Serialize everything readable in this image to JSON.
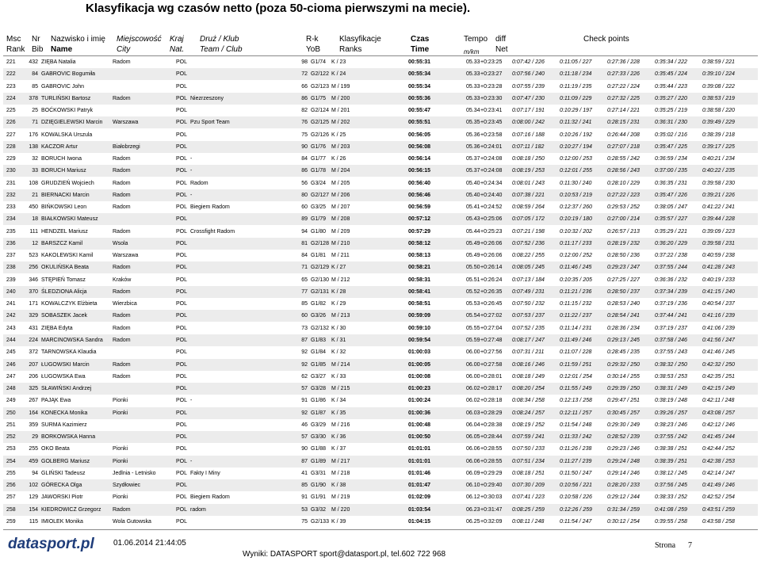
{
  "header": {
    "title": "Klasyfikacja wg czasów netto (poza 50-cioma pierwszymi na mecie)."
  },
  "columns": [
    {
      "pl": "Msc",
      "en": "Rank"
    },
    {
      "pl": "Nr",
      "en": "Bib"
    },
    {
      "pl": "Nazwisko i imię",
      "en": "Name"
    },
    {
      "pl": "Miejscowość",
      "en": "City"
    },
    {
      "pl": "Kraj",
      "en": "Nat."
    },
    {
      "pl": "Druż / Klub",
      "en": "Team / Club"
    },
    {
      "pl": "R-k",
      "en": "YoB"
    },
    {
      "pl": "Klasyfikacje",
      "en": "Ranks"
    },
    {
      "pl": "Czas",
      "en": "Time"
    },
    {
      "pl": "Tempo",
      "en": "m/km"
    },
    {
      "pl": "diff",
      "en": "Net"
    },
    {
      "pl": "Check points",
      "en": null
    }
  ],
  "table": {
    "rows": [
      [
        "221",
        "432",
        "ZIĘBA Natalia",
        "Radom",
        "POL",
        null,
        "98",
        "G1/74",
        "K / 23",
        "00:55:31",
        "05.33",
        "+0:23:25",
        "0:07:42 / 226",
        "0:11:05 / 227",
        "0:27:36 / 228",
        "0:35:34 / 222",
        "0:38:59 / 221"
      ],
      [
        "222",
        "84",
        "GABROVIC Bogumiła",
        null,
        "POL",
        null,
        "72",
        "G2/122",
        "K / 24",
        "00:55:34",
        "05.33",
        "+0:23:27",
        "0:07:56 / 240",
        "0:11:18 / 234",
        "0:27:33 / 226",
        "0:35:45 / 224",
        "0:39:10 / 224"
      ],
      [
        "223",
        "85",
        "GABROVIC John",
        null,
        "POL",
        null,
        "66",
        "G2/123",
        "M / 199",
        "00:55:34",
        "05.33",
        "+0:23:28",
        "0:07:55 / 239",
        "0:11:19 / 235",
        "0:27:22 / 224",
        "0:35:44 / 223",
        "0:39:08 / 222"
      ],
      [
        "224",
        "378",
        "TURLIŃSKI Bartosz",
        "Radom",
        "POL",
        "Niezrzeszony",
        "86",
        "G1/75",
        "M / 200",
        "00:55:36",
        "05.33",
        "+0:23:30",
        "0:07:47 / 230",
        "0:11:09 / 229",
        "0:27:32 / 225",
        "0:35:27 / 220",
        "0:38:53 / 219"
      ],
      [
        "225",
        "25",
        "BOĆKOWSKI Patryk",
        null,
        "POL",
        null,
        "82",
        "G2/124",
        "M / 201",
        "00:55:47",
        "05.34",
        "+0:23:41",
        "0:07:17 / 191",
        "0:10:29 / 197",
        "0:27:14 / 221",
        "0:35:25 / 219",
        "0:38:58 / 220"
      ],
      [
        "226",
        "71",
        "DZIĘGIELEWSKI Marcin",
        "Warszawa",
        "POL",
        "Pzu Sport Team",
        "76",
        "G2/125",
        "M / 202",
        "00:55:51",
        "05.35",
        "+0:23:45",
        "0:08:00 / 242",
        "0:11:32 / 241",
        "0:28:15 / 231",
        "0:36:31 / 230",
        "0:39:49 / 229"
      ],
      [
        "227",
        "176",
        "KOWALSKA Urszula",
        null,
        "POL",
        null,
        "75",
        "G2/126",
        "K / 25",
        "00:56:05",
        "05.36",
        "+0:23:58",
        "0:07:16 / 188",
        "0:10:26 / 192",
        "0:26:44 / 208",
        "0:35:02 / 216",
        "0:38:39 / 218"
      ],
      [
        "228",
        "138",
        "KACZOR Artur",
        "Białobrzegi",
        "POL",
        null,
        "90",
        "G1/76",
        "M / 203",
        "00:56:08",
        "05.36",
        "+0:24:01",
        "0:07:11 / 182",
        "0:10:27 / 194",
        "0:27:07 / 218",
        "0:35:47 / 225",
        "0:39:17 / 225"
      ],
      [
        "229",
        "32",
        "BORUCH Iwona",
        "Radom",
        "POL",
        "-",
        "84",
        "G1/77",
        "K / 26",
        "00:56:14",
        "05.37",
        "+0:24:08",
        "0:08:18 / 250",
        "0:12:00 / 253",
        "0:28:55 / 242",
        "0:36:59 / 234",
        "0:40:21 / 234"
      ],
      [
        "230",
        "33",
        "BORUCH Mariusz",
        "Radom",
        "POL",
        "-",
        "86",
        "G1/78",
        "M / 204",
        "00:56:15",
        "05.37",
        "+0:24:08",
        "0:08:19 / 253",
        "0:12:01 / 255",
        "0:28:56 / 243",
        "0:37:00 / 235",
        "0:40:22 / 235"
      ],
      [
        "231",
        "108",
        "GRUDZIEŃ Wojciech",
        "Radom",
        "POL",
        "Radom",
        "56",
        "G3/24",
        "M / 205",
        "00:56:40",
        "05.40",
        "+0:24:34",
        "0:08:01 / 243",
        "0:11:30 / 240",
        "0:28:10 / 229",
        "0:36:35 / 231",
        "0:39:58 / 230"
      ],
      [
        "232",
        "21",
        "BIERNACKI Marcin",
        "Radom",
        "POL",
        "-",
        "80",
        "G2/127",
        "M / 206",
        "00:56:46",
        "05.40",
        "+0:24:40",
        "0:07:38 / 221",
        "0:10:53 / 219",
        "0:27:22 / 223",
        "0:35:47 / 226",
        "0:39:21 / 226"
      ],
      [
        "233",
        "450",
        "BIŃKOWSKI Leon",
        "Radom",
        "POL",
        "Biegiem Radom",
        "60",
        "G3/25",
        "M / 207",
        "00:56:59",
        "05.41",
        "+0:24:52",
        "0:08:59 / 264",
        "0:12:37 / 260",
        "0:29:53 / 252",
        "0:38:05 / 247",
        "0:41:22 / 241"
      ],
      [
        "234",
        "18",
        "BIAŁKOWSKI Mateusz",
        null,
        "POL",
        null,
        "89",
        "G1/79",
        "M / 208",
        "00:57:12",
        "05.43",
        "+0:25:06",
        "0:07:05 / 172",
        "0:10:19 / 180",
        "0:27:00 / 214",
        "0:35:57 / 227",
        "0:39:44 / 228"
      ],
      [
        "235",
        "111",
        "HENDZEL Mariusz",
        "Radom",
        "POL",
        "Crossfight Radom",
        "94",
        "G1/80",
        "M / 209",
        "00:57:29",
        "05.44",
        "+0:25:23",
        "0:07:21 / 198",
        "0:10:32 / 202",
        "0:26:57 / 213",
        "0:35:29 / 221",
        "0:39:09 / 223"
      ],
      [
        "236",
        "12",
        "BARSZCZ Kamil",
        "Wsola",
        "POL",
        null,
        "81",
        "G2/128",
        "M / 210",
        "00:58:12",
        "05.49",
        "+0:26:06",
        "0:07:52 / 236",
        "0:11:17 / 233",
        "0:28:19 / 232",
        "0:36:20 / 229",
        "0:39:58 / 231"
      ],
      [
        "237",
        "523",
        "KAKOLEWSKI Kamil",
        "Warszawa",
        "POL",
        null,
        "84",
        "G1/81",
        "M / 211",
        "00:58:13",
        "05.49",
        "+0:26:06",
        "0:08:22 / 255",
        "0:12:00 / 252",
        "0:28:50 / 236",
        "0:37:22 / 238",
        "0:40:59 / 238"
      ],
      [
        "238",
        "256",
        "OKULIŃSKA Beata",
        "Radom",
        "POL",
        null,
        "71",
        "G2/129",
        "K / 27",
        "00:58:21",
        "05.50",
        "+0:26:14",
        "0:08:05 / 245",
        "0:11:46 / 245",
        "0:29:23 / 247",
        "0:37:55 / 244",
        "0:41:28 / 243"
      ],
      [
        "239",
        "346",
        "STĘPIEŃ Tomasz",
        "Kraków",
        "POL",
        null,
        "65",
        "G2/130",
        "M / 212",
        "00:58:31",
        "05.51",
        "+0:26:24",
        "0:07:13 / 184",
        "0:10:35 / 205",
        "0:27:25 / 227",
        "0:36:36 / 232",
        "0:40:19 / 233"
      ],
      [
        "240",
        "370",
        "ŚLEDZIONA Alicja",
        "Radom",
        "POL",
        null,
        "77",
        "G2/131",
        "K / 28",
        "00:58:41",
        "05.52",
        "+0:26:35",
        "0:07:49 / 231",
        "0:11:21 / 236",
        "0:28:50 / 237",
        "0:37:34 / 239",
        "0:41:15 / 240"
      ],
      [
        "241",
        "171",
        "KOWALCZYK Elżbieta",
        "Wierzbica",
        "POL",
        null,
        "85",
        "G1/82",
        "K / 29",
        "00:58:51",
        "05.53",
        "+0:26:45",
        "0:07:50 / 232",
        "0:11:15 / 232",
        "0:28:53 / 240",
        "0:37:19 / 236",
        "0:40:54 / 237"
      ],
      [
        "242",
        "329",
        "SOBASZEK Jacek",
        "Radom",
        "POL",
        null,
        "60",
        "G3/26",
        "M / 213",
        "00:59:09",
        "05.54",
        "+0:27:02",
        "0:07:53 / 237",
        "0:11:22 / 237",
        "0:28:54 / 241",
        "0:37:44 / 241",
        "0:41:16 / 239"
      ],
      [
        "243",
        "431",
        "ZIĘBA Edyta",
        "Radom",
        "POL",
        null,
        "73",
        "G2/132",
        "K / 30",
        "00:59:10",
        "05.55",
        "+0:27:04",
        "0:07:52 / 235",
        "0:11:14 / 231",
        "0:28:36 / 234",
        "0:37:19 / 237",
        "0:41:06 / 239"
      ],
      [
        "244",
        "224",
        "MARCINOWSKA Sandra",
        "Radom",
        "POL",
        null,
        "87",
        "G1/83",
        "K / 31",
        "00:59:54",
        "05.59",
        "+0:27:48",
        "0:08:17 / 247",
        "0:11:49 / 246",
        "0:29:13 / 245",
        "0:37:58 / 246",
        "0:41:56 / 247"
      ],
      [
        "245",
        "372",
        "TARNOWSKA Klaudia",
        null,
        "POL",
        null,
        "92",
        "G1/84",
        "K / 32",
        "01:00:03",
        "06.00",
        "+0:27:56",
        "0:07:31 / 211",
        "0:11:07 / 228",
        "0:28:45 / 235",
        "0:37:55 / 243",
        "0:41:46 / 245"
      ],
      [
        "246",
        "207",
        "ŁUGOWSKI Marcin",
        "Radom",
        "POL",
        null,
        "92",
        "G1/85",
        "M / 214",
        "01:00:05",
        "06.00",
        "+0:27:58",
        "0:08:16 / 246",
        "0:11:59 / 251",
        "0:29:32 / 250",
        "0:38:32 / 250",
        "0:42:32 / 250"
      ],
      [
        "247",
        "206",
        "ŁUGOWSKA Ewa",
        "Radom",
        "POL",
        null,
        "62",
        "G3/27",
        "K / 33",
        "01:00:08",
        "06.00",
        "+0:28:01",
        "0:08:18 / 249",
        "0:12:01 / 254",
        "0:30:14 / 255",
        "0:38:53 / 253",
        "0:42:35 / 251"
      ],
      [
        "248",
        "325",
        "SŁAWIŃSKI Andrzej",
        null,
        "POL",
        null,
        "57",
        "G3/28",
        "M / 215",
        "01:00:23",
        "06.02",
        "+0:28:17",
        "0:08:20 / 254",
        "0:11:55 / 249",
        "0:29:39 / 250",
        "0:38:31 / 249",
        "0:42:15 / 249"
      ],
      [
        "249",
        "267",
        "PAJĄK Ewa",
        "Pionki",
        "POL",
        "-",
        "91",
        "G1/86",
        "K / 34",
        "01:00:24",
        "06.02",
        "+0:28:18",
        "0:08:34 / 258",
        "0:12:13 / 258",
        "0:29:47 / 251",
        "0:38:19 / 248",
        "0:42:11 / 248"
      ],
      [
        "250",
        "164",
        "KONECKA Monika",
        "Pionki",
        "POL",
        null,
        "92",
        "G1/87",
        "K / 35",
        "01:00:36",
        "06.03",
        "+0:28:29",
        "0:08:24 / 257",
        "0:12:11 / 257",
        "0:30:45 / 257",
        "0:39:26 / 257",
        "0:43:08 / 257"
      ],
      [
        "251",
        "359",
        "SURMA Kazimierz",
        null,
        "POL",
        null,
        "46",
        "G3/29",
        "M / 216",
        "01:00:48",
        "06.04",
        "+0:28:38",
        "0:08:19 / 252",
        "0:11:54 / 248",
        "0:29:30 / 249",
        "0:38:23 / 246",
        "0:42:12 / 246"
      ],
      [
        "252",
        "29",
        "BORKOWSKA Hanna",
        null,
        "POL",
        null,
        "57",
        "G3/30",
        "K / 36",
        "01:00:50",
        "06.05",
        "+0:28:44",
        "0:07:59 / 241",
        "0:11:33 / 242",
        "0:28:52 / 239",
        "0:37:55 / 242",
        "0:41:45 / 244"
      ],
      [
        "253",
        "255",
        "OKO Beata",
        "Pionki",
        "POL",
        null,
        "90",
        "G1/88",
        "K / 37",
        "01:01:01",
        "06.06",
        "+0:28:55",
        "0:07:50 / 233",
        "0:11:26 / 238",
        "0:29:23 / 246",
        "0:38:38 / 251",
        "0:42:44 / 252"
      ],
      [
        "254",
        "459",
        "GOLBERG Mariusz",
        "Pionki",
        "POL",
        "-",
        "87",
        "G1/89",
        "M / 217",
        "01:01:01",
        "06.06",
        "+0:28:55",
        "0:07:51 / 234",
        "0:11:27 / 239",
        "0:29:24 / 248",
        "0:38:39 / 251",
        "0:42:38 / 253"
      ],
      [
        "255",
        "94",
        "GLIŃSKI Tadeusz",
        "Jedlnia - Letnisko",
        "POL",
        "Fakty I Miny",
        "41",
        "G3/31",
        "M / 218",
        "01:01:46",
        "06.09",
        "+0:29:29",
        "0:08:18 / 251",
        "0:11:50 / 247",
        "0:29:14 / 246",
        "0:38:12 / 245",
        "0:42:14 / 247"
      ],
      [
        "256",
        "102",
        "GÓRECKA Olga",
        "Szydłowiec",
        "POL",
        null,
        "85",
        "G1/90",
        "K / 38",
        "01:01:47",
        "06.10",
        "+0:29:40",
        "0:07:30 / 209",
        "0:10:56 / 221",
        "0:28:20 / 233",
        "0:37:56 / 245",
        "0:41:49 / 246"
      ],
      [
        "257",
        "129",
        "JAWORSKI Piotr",
        "Pionki",
        "POL",
        "Biegiem Radom",
        "91",
        "G1/91",
        "M / 219",
        "01:02:09",
        "06.12",
        "+0:30:03",
        "0:07:41 / 223",
        "0:10:58 / 226",
        "0:29:12 / 244",
        "0:38:33 / 252",
        "0:42:52 / 254"
      ],
      [
        "258",
        "154",
        "KIEDROWICZ Grzegorz",
        "Radom",
        "POL",
        "radom",
        "53",
        "G3/32",
        "M / 220",
        "01:03:54",
        "06.23",
        "+0:31:47",
        "0:08:25 / 259",
        "0:12:26 / 259",
        "0:31:34 / 259",
        "0:41:08 / 259",
        "0:43:51 / 259"
      ],
      [
        "259",
        "115",
        "IMIOLEK Monika",
        "Wola Gutowska",
        "POL",
        null,
        "75",
        "G2/133",
        "K / 39",
        "01:04:15",
        "06.25",
        "+0:32:09",
        "0:08:11 / 248",
        "0:11:54 / 247",
        "0:30:12 / 254",
        "0:39:55 / 258",
        "0:43:58 / 258"
      ]
    ]
  },
  "footer": {
    "logo": "datasport.pl",
    "date": "01.06.2014 21:44:05",
    "contact": "Wyniki: DATASPORT sport@datasport.pl, tel.602 722 968",
    "page_label": "Strona",
    "page": "7"
  }
}
